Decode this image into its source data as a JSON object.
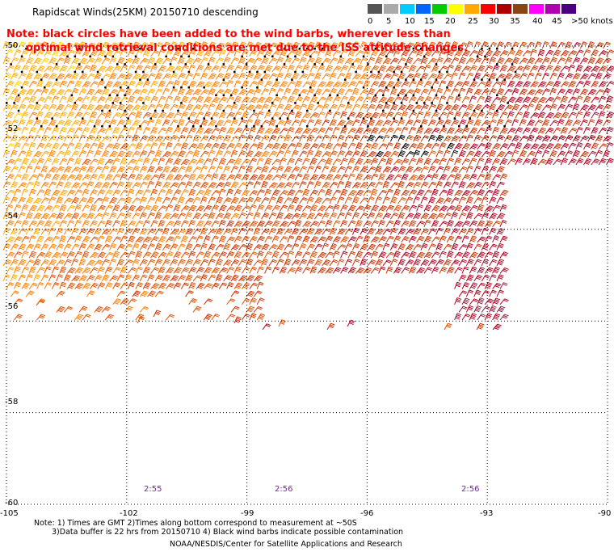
{
  "title": "Rapidscat Winds(25KM) 20150710 descending",
  "note_lines": [
    "Note: black circles have been added to the wind barbs, wherever less than",
    "optimal wind retrieval conditions are met due to the ISS attitude changes."
  ],
  "colorbar": {
    "unit_label": ">50 knots",
    "labels": [
      "0",
      "5",
      "10",
      "15",
      "20",
      "25",
      "30",
      "35",
      "40",
      "45"
    ],
    "colors": [
      "#555555",
      "#aaaaaa",
      "#00ccff",
      "#0066ff",
      "#00cc00",
      "#ffff00",
      "#ffaa00",
      "#ff0000",
      "#aa0000",
      "#8b4513",
      "#ff00ff",
      "#b000b0",
      "#4b0082"
    ]
  },
  "lat_labels": [
    "-50",
    "-52",
    "-54",
    "-56",
    "-58",
    "-60"
  ],
  "lon_labels": [
    "-105",
    "-102",
    "-99",
    "-96",
    "-93",
    "-90"
  ],
  "time_labels": [
    "2:55",
    "2:56",
    "2:56"
  ],
  "footnotes": [
    "Note: 1) Times are GMT 2)Times along bottom correspond to measurement at ~50S",
    "3)Data buffer is 22 hrs from 20150710 4) Black wind barbs indicate possible contamination",
    "NOAA/NESDIS/Center for Satellite Applications and Research"
  ],
  "map": {
    "lat_range": [
      -60,
      -50
    ],
    "lon_range": [
      -105,
      -90
    ],
    "wind_speed_range_knots": [
      15,
      40
    ],
    "barb_colors": [
      "#ffd400",
      "#ffaa00",
      "#ff7f00",
      "#e05000",
      "#c83200",
      "#b00020",
      "#8b1e3f"
    ]
  }
}
